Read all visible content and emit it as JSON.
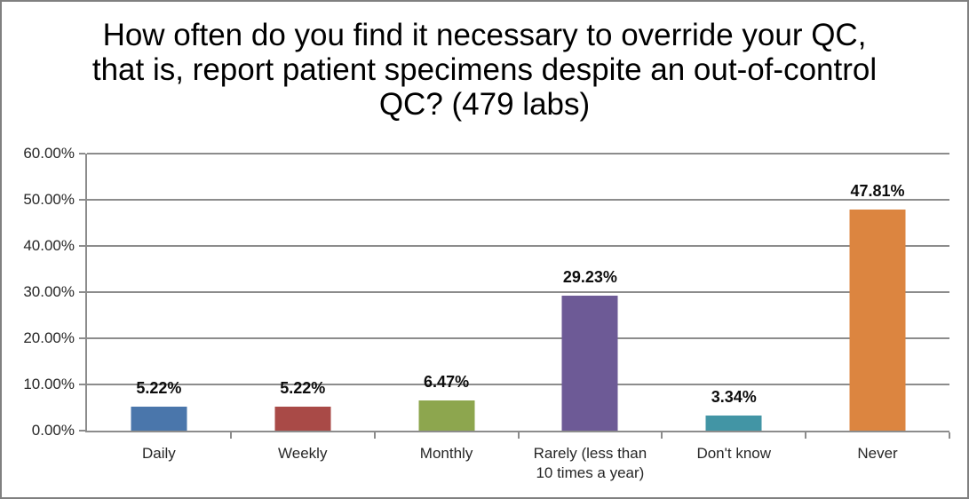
{
  "chart_data": {
    "type": "bar",
    "title": "How often do you find it necessary to override your QC, that is, report patient specimens despite an out-of-control QC? (479 labs)",
    "categories": [
      "Daily",
      "Weekly",
      "Monthly",
      "Rarely (less than 10 times a year)",
      "Don't know",
      "Never"
    ],
    "values": [
      5.22,
      5.22,
      6.47,
      29.23,
      3.34,
      47.81
    ],
    "data_labels": [
      "5.22%",
      "5.22%",
      "6.47%",
      "29.23%",
      "3.34%",
      "47.81%"
    ],
    "bar_colors": [
      "#4a76ab",
      "#a94a47",
      "#8da64e",
      "#6d5a96",
      "#4295a5",
      "#dc8540"
    ],
    "xlabel": "",
    "ylabel": "",
    "ylim": [
      0,
      60
    ],
    "y_ticks": [
      0,
      10,
      20,
      30,
      40,
      50,
      60
    ],
    "y_tick_labels": [
      "0.00%",
      "10.00%",
      "20.00%",
      "30.00%",
      "40.00%",
      "50.00%",
      "60.00%"
    ],
    "grid": "horizontal",
    "legend": "none"
  },
  "styles": {
    "axis_color": "#8c8c8c",
    "grid_color": "#8c8c8c",
    "border_color": "#808080",
    "label_color": "#262626",
    "title_color": "#000000"
  }
}
